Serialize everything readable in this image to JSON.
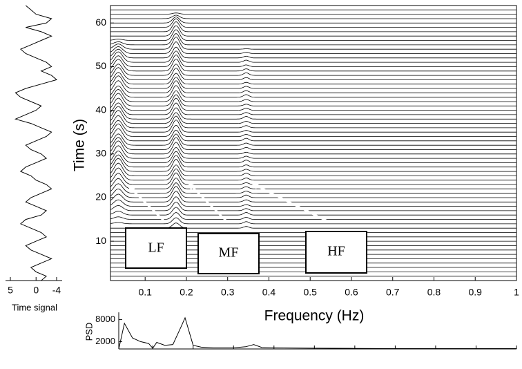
{
  "chart_data": [
    {
      "type": "line",
      "orientation": "vertical",
      "ylabel": "Time signal",
      "x": [
        1,
        2,
        3,
        4,
        5,
        6,
        7,
        8,
        9,
        10,
        11,
        12,
        13,
        14,
        15,
        16,
        17,
        18,
        19,
        20,
        21,
        22,
        23,
        24,
        25,
        26,
        27,
        28,
        29,
        30,
        31,
        32,
        33,
        34,
        35,
        36,
        37,
        38,
        39,
        40,
        41,
        42,
        43,
        44,
        45,
        46,
        47,
        48,
        49,
        50,
        51,
        52,
        53,
        54,
        55,
        56,
        57,
        58,
        59,
        60,
        61,
        62,
        63,
        64
      ],
      "values": [
        -1,
        -2,
        0,
        1,
        -1,
        -3,
        -1,
        1,
        2,
        0,
        -2,
        -1,
        1,
        3,
        2,
        -1,
        -2,
        0,
        2,
        1,
        -1,
        -3,
        -2,
        0,
        1,
        3,
        2,
        0,
        -2,
        -1,
        1,
        2,
        0,
        -2,
        -3,
        -1,
        1,
        4,
        2,
        0,
        -1,
        1,
        3,
        4,
        2,
        -1,
        -4,
        -3,
        -1,
        -3,
        -2,
        0,
        2,
        3,
        1,
        -1,
        -3,
        -1,
        2,
        -2,
        -3,
        0,
        1,
        2
      ],
      "color": "#000000",
      "xlim": [
        1,
        64
      ],
      "ylim": [
        5,
        -4
      ],
      "yticks": [
        5,
        0,
        -4
      ]
    },
    {
      "type": "waterfall",
      "xlabel": "Frequency (Hz)",
      "ylabel": "Time (s)",
      "xlim": [
        0.016,
        1
      ],
      "ylim": [
        1,
        64
      ],
      "xticks": [
        0.1,
        0.2,
        0.3,
        0.4,
        0.5,
        0.6,
        0.7,
        0.8,
        0.9,
        1
      ],
      "yticks": [
        10,
        20,
        30,
        40,
        50,
        60
      ],
      "times": [
        1,
        2,
        3,
        4,
        5,
        6,
        7,
        8,
        9,
        10,
        11,
        12,
        13,
        14,
        15,
        16,
        17,
        18,
        19,
        20,
        21,
        22,
        23,
        24,
        25,
        26,
        27,
        28,
        29,
        30,
        31,
        32,
        33,
        34,
        35,
        36,
        37,
        38,
        39,
        40,
        41,
        42,
        43,
        44,
        45,
        46,
        47,
        48,
        49,
        50,
        51,
        52,
        53,
        54,
        55,
        56,
        57,
        58,
        59,
        60,
        61,
        62,
        63
      ],
      "bands": [
        {
          "name": "LF",
          "frequency": 0.035,
          "values": [
            0,
            0,
            0,
            0,
            0,
            0,
            0,
            0,
            0,
            0,
            0,
            0,
            0,
            0.3,
            0.6,
            0.9,
            1.2,
            1.5,
            1.8,
            2.0,
            2.2,
            2.4,
            2.6,
            2.8,
            2.9,
            3.0,
            2.8,
            2.7,
            2.9,
            3.0,
            2.8,
            2.6,
            2.8,
            2.9,
            2.7,
            2.8,
            3.0,
            2.9,
            2.7,
            2.8,
            2.9,
            2.8,
            2.6,
            2.8,
            2.9,
            2.7,
            2.8,
            2.6,
            2.7,
            2.5,
            2.4,
            2.0,
            1.6,
            1.2,
            0.7,
            0.3,
            0,
            0,
            0,
            0,
            0,
            0,
            0
          ]
        },
        {
          "name": "MF",
          "frequency": 0.175,
          "values": [
            0,
            0,
            0,
            0,
            0,
            0,
            0,
            0,
            0.3,
            0.5,
            0.8,
            1.0,
            1.2,
            1.4,
            1.6,
            1.8,
            2.0,
            2.2,
            2.5,
            2.6,
            2.4,
            2.5,
            2.7,
            2.6,
            2.5,
            2.8,
            2.7,
            2.6,
            2.5,
            2.7,
            2.8,
            2.6,
            2.5,
            2.6,
            2.8,
            2.7,
            2.5,
            2.6,
            2.7,
            2.8,
            2.6,
            2.5,
            2.7,
            2.8,
            2.6,
            2.5,
            2.7,
            2.6,
            2.8,
            2.7,
            2.6,
            2.5,
            2.7,
            2.8,
            2.6,
            2.5,
            2.4,
            2.3,
            2.0,
            1.4,
            0.8,
            0.3,
            0
          ]
        },
        {
          "name": "HF",
          "frequency": 0.345,
          "values": [
            0,
            0,
            0,
            0,
            0,
            0,
            0,
            0,
            0,
            0,
            0,
            0,
            0.4,
            0.5,
            0.5,
            0.6,
            0.5,
            0.4,
            0.5,
            0.6,
            0.5,
            0.5,
            0.4,
            0.5,
            0.6,
            0.5,
            0.5,
            0.6,
            0.5,
            0.4,
            0.5,
            0.5,
            0.6,
            0.5,
            0.4,
            0.5,
            0.5,
            0.6,
            0.5,
            0.5,
            0.4,
            0.5,
            0.6,
            0.5,
            0.5,
            0.4,
            0.5,
            0.6,
            0.5,
            0.4,
            0.5,
            0.4,
            0.3,
            0.1,
            0,
            0,
            0,
            0,
            0,
            0,
            0,
            0,
            0
          ]
        }
      ]
    },
    {
      "type": "line",
      "ylabel": "PSD",
      "color": "#000000",
      "x": [
        0.016,
        0.03,
        0.05,
        0.07,
        0.09,
        0.1,
        0.11,
        0.13,
        0.15,
        0.17,
        0.18,
        0.2,
        0.22,
        0.25,
        0.3,
        0.33,
        0.35,
        0.37,
        0.4,
        0.5,
        0.6,
        0.7,
        0.8,
        0.9,
        1
      ],
      "values": [
        0,
        7000,
        3000,
        2000,
        1500,
        200,
        1800,
        1000,
        1200,
        6000,
        8500,
        1000,
        500,
        300,
        300,
        600,
        1200,
        400,
        300,
        200,
        150,
        100,
        100,
        100,
        100
      ],
      "xlim": [
        0.016,
        1
      ],
      "ylim": [
        0,
        10000
      ],
      "yticks": [
        2000,
        8000
      ]
    }
  ]
}
